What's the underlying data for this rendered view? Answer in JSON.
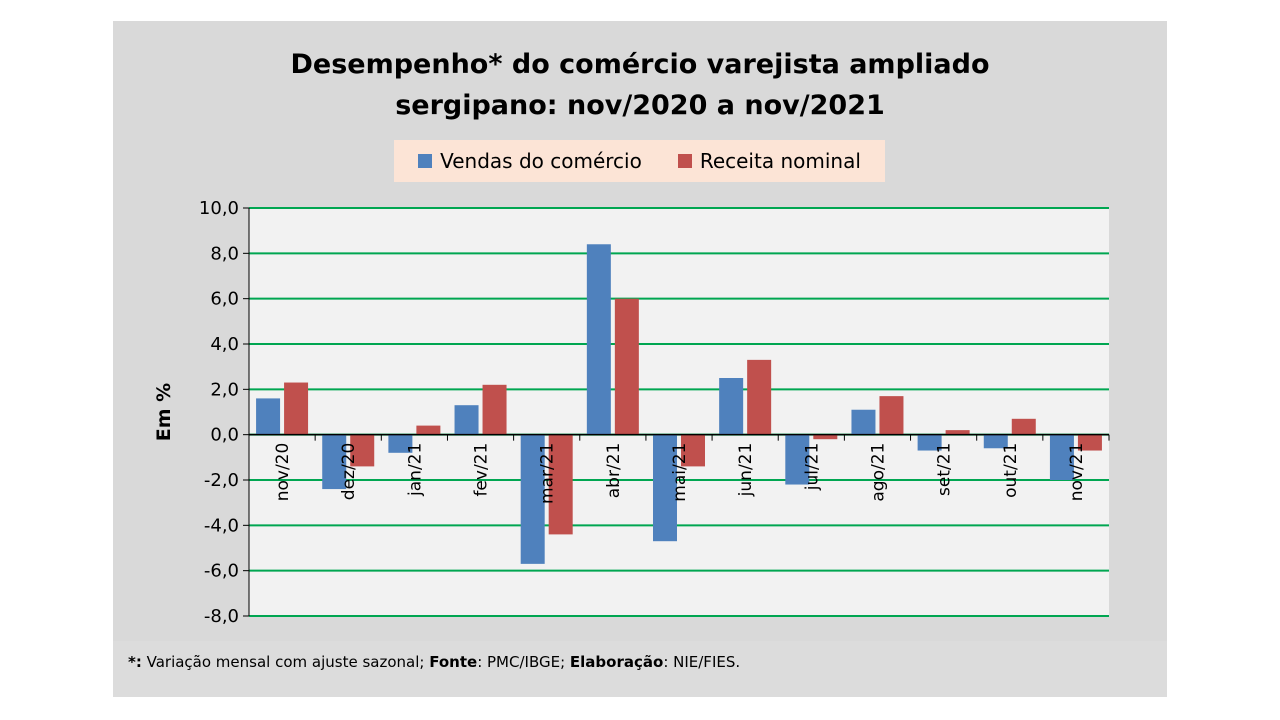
{
  "chart_data": {
    "type": "bar",
    "title_lines": [
      "Desempenho* do comércio varejista ampliado",
      "sergipano: nov/2020 a nov/2021"
    ],
    "title": "Desempenho* do comércio varejista ampliado sergipano: nov/2020 a nov/2021",
    "ylabel": "Em %",
    "xlabel": "",
    "ylim": [
      -8,
      10
    ],
    "yticks": [
      "10,0",
      "8,0",
      "6,0",
      "4,0",
      "2,0",
      "0,0",
      "-2,0",
      "-4,0",
      "-6,0",
      "-8,0"
    ],
    "categories": [
      "nov/20",
      "dez/20",
      "jan/21",
      "fev/21",
      "mar/21",
      "abr/21",
      "mai/21",
      "jun/21",
      "jul/21",
      "ago/21",
      "set/21",
      "out/21",
      "nov/21"
    ],
    "series": [
      {
        "name": "Vendas do comércio",
        "color": "#4f81bd",
        "values": [
          1.6,
          -2.4,
          -0.8,
          1.3,
          -5.7,
          8.4,
          -4.7,
          2.5,
          -2.2,
          1.1,
          -0.7,
          -0.6,
          -2.0
        ]
      },
      {
        "name": "Receita nominal",
        "color": "#c0504d",
        "values": [
          2.3,
          -1.4,
          0.4,
          2.2,
          -4.4,
          6.0,
          -1.4,
          3.3,
          -0.2,
          1.7,
          0.2,
          0.7,
          -0.7
        ]
      }
    ],
    "grid": true,
    "grid_color": "#00a651",
    "plot_background": "#f2f2f2",
    "legend_position": "top"
  },
  "footnote": {
    "star": "*:",
    "text1": " Variação mensal com ajuste sazonal; ",
    "fonte_label": "Fonte",
    "text2": ": PMC/IBGE; ",
    "elab_label": "Elaboração",
    "text3": ": NIE/FIES."
  }
}
